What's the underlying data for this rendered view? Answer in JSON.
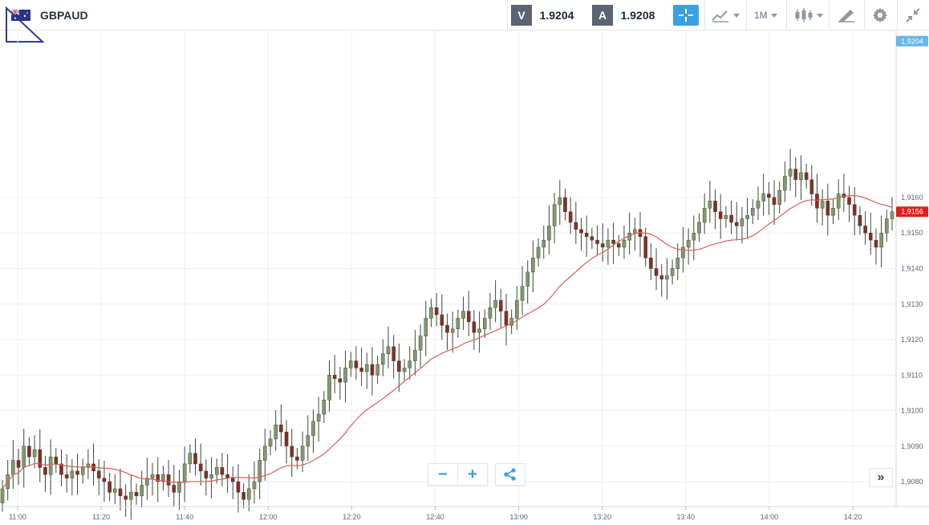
{
  "header": {
    "symbol": "GBPAUD",
    "sell_label": "V",
    "sell_price": "1.9204",
    "buy_label": "A",
    "buy_price": "1.9208",
    "timeframe": "1M",
    "icons": [
      "flag-icon",
      "crosshair-icon",
      "indicators-icon",
      "candles-icon",
      "draw-icon",
      "gear-icon",
      "minimize-icon"
    ]
  },
  "controls": {
    "zoom_out": "−",
    "zoom_in": "+",
    "more": "»"
  },
  "colors": {
    "bull": "#7f9a6d",
    "bear": "#8a2d22",
    "ma": "#e05b5b",
    "ask_tag": "#65b7e6",
    "last_tag": "#e41e1e",
    "accent": "#3b9fe0"
  },
  "chart_data": {
    "type": "candlestick",
    "ylim": [
      1.9073,
      1.9207
    ],
    "yticks": [
      "1,9080",
      "1,9090",
      "1,9100",
      "1,9110",
      "1,9120",
      "1,9130",
      "1,9140",
      "1,9150",
      "1,9160"
    ],
    "xticks": [
      "11:00",
      "11:20",
      "11:40",
      "12:00",
      "12:20",
      "12:40",
      "13:00",
      "13:20",
      "13:40",
      "14:00",
      "14:20"
    ],
    "ask_label": "1,9204",
    "last_label": "1,9156",
    "ask_value": 1.9204,
    "last_value": 1.9156,
    "closes": [
      1.9078,
      1.9082,
      1.9086,
      1.9084,
      1.909,
      1.9087,
      1.9089,
      1.9084,
      1.9082,
      1.9087,
      1.9085,
      1.9082,
      1.9081,
      1.9083,
      1.9082,
      1.9084,
      1.9085,
      1.9083,
      1.9081,
      1.908,
      1.9077,
      1.9078,
      1.9076,
      1.9075,
      1.9077,
      1.9076,
      1.9079,
      1.9081,
      1.9082,
      1.908,
      1.9082,
      1.9079,
      1.9077,
      1.908,
      1.9085,
      1.9088,
      1.9085,
      1.9083,
      1.9081,
      1.9082,
      1.9084,
      1.9082,
      1.9081,
      1.908,
      1.9077,
      1.9075,
      1.9078,
      1.908,
      1.9086,
      1.909,
      1.9092,
      1.9096,
      1.9094,
      1.909,
      1.9087,
      1.9086,
      1.909,
      1.9093,
      1.9097,
      1.9099,
      1.9103,
      1.911,
      1.9109,
      1.9108,
      1.9112,
      1.9114,
      1.9112,
      1.9111,
      1.9113,
      1.911,
      1.9113,
      1.9116,
      1.9118,
      1.9114,
      1.9111,
      1.9112,
      1.9114,
      1.9117,
      1.9121,
      1.9126,
      1.9129,
      1.9127,
      1.9124,
      1.9122,
      1.9123,
      1.9126,
      1.9128,
      1.9125,
      1.9122,
      1.9123,
      1.9126,
      1.9129,
      1.9131,
      1.9128,
      1.9124,
      1.9126,
      1.9131,
      1.9135,
      1.9139,
      1.9143,
      1.9146,
      1.9148,
      1.9152,
      1.9158,
      1.916,
      1.9156,
      1.9153,
      1.9151,
      1.915,
      1.9149,
      1.9148,
      1.9147,
      1.9146,
      1.9148,
      1.9147,
      1.9146,
      1.9148,
      1.915,
      1.9151,
      1.9149,
      1.9143,
      1.914,
      1.9138,
      1.9137,
      1.9138,
      1.914,
      1.9143,
      1.9146,
      1.9148,
      1.915,
      1.9153,
      1.9157,
      1.9159,
      1.9156,
      1.9154,
      1.9155,
      1.9153,
      1.9152,
      1.9154,
      1.9155,
      1.9157,
      1.9159,
      1.9161,
      1.916,
      1.9158,
      1.9162,
      1.9166,
      1.9168,
      1.9165,
      1.9167,
      1.9165,
      1.9161,
      1.9157,
      1.9159,
      1.9155,
      1.9157,
      1.9161,
      1.916,
      1.9158,
      1.9155,
      1.9152,
      1.915,
      1.9148,
      1.9146,
      1.915,
      1.9154,
      1.9156
    ]
  }
}
